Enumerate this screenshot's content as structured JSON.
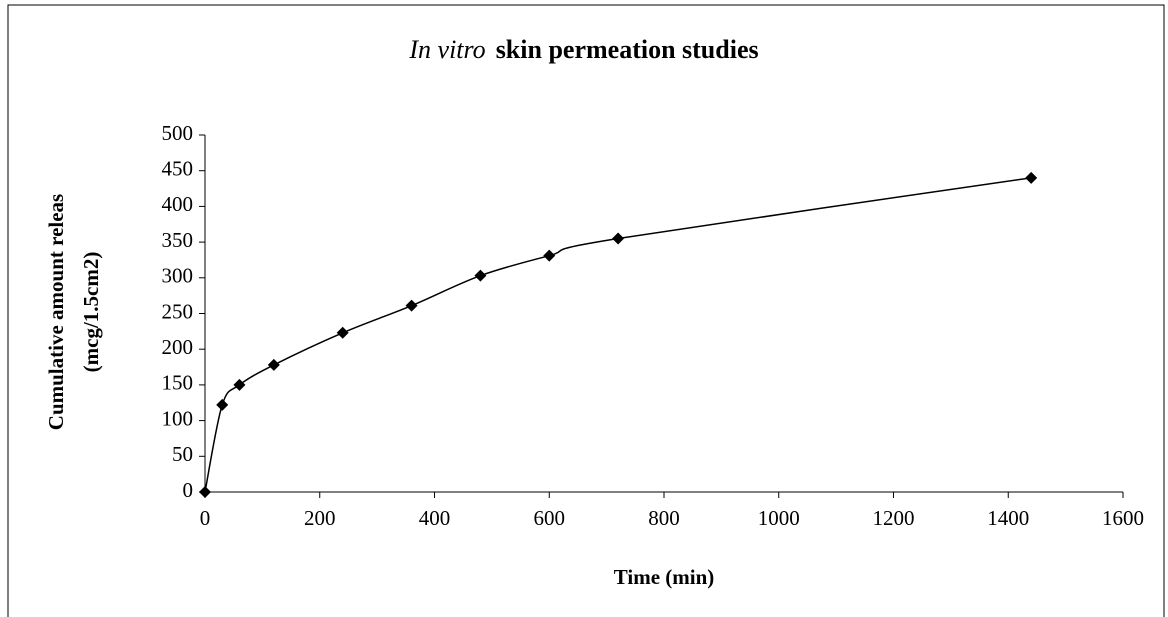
{
  "chart_data": {
    "type": "scatter",
    "title": [
      "In vitro",
      "skin permeation studies"
    ],
    "xlabel": "Time (min)",
    "ylabel": [
      "Cumulative amount releas",
      "(mcg/1.5cm2)"
    ],
    "x": [
      0,
      30,
      60,
      120,
      240,
      360,
      480,
      600,
      720,
      1440
    ],
    "values": [
      0,
      122,
      150,
      178,
      223,
      261,
      303,
      331,
      355,
      440
    ],
    "color": "#000000",
    "xlim": [
      0,
      1600
    ],
    "xticks": [
      0,
      200,
      400,
      600,
      800,
      1000,
      1200,
      1400,
      1600
    ],
    "ylim": [
      0,
      500
    ],
    "yticks": [
      0,
      50,
      100,
      150,
      200,
      250,
      300,
      350,
      400,
      450,
      500
    ],
    "grid": false
  }
}
